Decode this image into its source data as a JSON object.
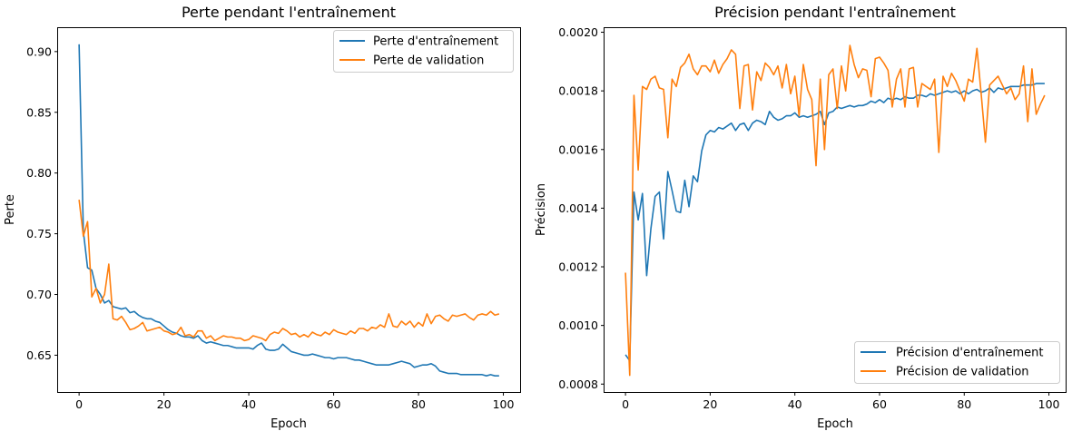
{
  "chart_data": [
    {
      "type": "line",
      "title": "Perte pendant l'entraînement",
      "xlabel": "Epoch",
      "ylabel": "Perte",
      "xlim": [
        -4.95,
        103.95
      ],
      "ylim": [
        0.6197,
        0.9193
      ],
      "xticks": [
        0,
        20,
        40,
        60,
        80,
        100
      ],
      "yticks": [
        0.65,
        0.7,
        0.75,
        0.8,
        0.85,
        0.9
      ],
      "ytick_labels": [
        "0.65",
        "0.70",
        "0.75",
        "0.80",
        "0.85",
        "0.90"
      ],
      "legend_position": "top-right",
      "grid": false,
      "series": [
        {
          "name": "Perte d'entraînement",
          "color": "#1f77b4",
          "values": [
            0.906,
            0.752,
            0.722,
            0.72,
            0.705,
            0.7,
            0.693,
            0.695,
            0.69,
            0.689,
            0.688,
            0.689,
            0.685,
            0.686,
            0.683,
            0.681,
            0.68,
            0.68,
            0.678,
            0.677,
            0.674,
            0.671,
            0.669,
            0.668,
            0.666,
            0.665,
            0.665,
            0.664,
            0.666,
            0.662,
            0.66,
            0.661,
            0.66,
            0.659,
            0.658,
            0.658,
            0.657,
            0.656,
            0.656,
            0.656,
            0.656,
            0.655,
            0.658,
            0.66,
            0.655,
            0.654,
            0.654,
            0.655,
            0.659,
            0.656,
            0.653,
            0.652,
            0.651,
            0.65,
            0.65,
            0.651,
            0.65,
            0.649,
            0.648,
            0.648,
            0.647,
            0.648,
            0.648,
            0.648,
            0.647,
            0.646,
            0.646,
            0.645,
            0.644,
            0.643,
            0.642,
            0.642,
            0.642,
            0.642,
            0.643,
            0.644,
            0.645,
            0.644,
            0.643,
            0.64,
            0.641,
            0.642,
            0.642,
            0.643,
            0.641,
            0.637,
            0.636,
            0.635,
            0.635,
            0.635,
            0.634,
            0.634,
            0.634,
            0.634,
            0.634,
            0.634,
            0.633,
            0.634,
            0.633,
            0.633
          ]
        },
        {
          "name": "Perte de validation",
          "color": "#ff7f0e",
          "values": [
            0.778,
            0.748,
            0.76,
            0.698,
            0.705,
            0.693,
            0.7,
            0.725,
            0.68,
            0.679,
            0.682,
            0.677,
            0.671,
            0.672,
            0.674,
            0.677,
            0.67,
            0.671,
            0.672,
            0.673,
            0.67,
            0.669,
            0.667,
            0.668,
            0.673,
            0.666,
            0.667,
            0.665,
            0.67,
            0.67,
            0.664,
            0.666,
            0.662,
            0.664,
            0.666,
            0.665,
            0.665,
            0.664,
            0.664,
            0.662,
            0.663,
            0.666,
            0.665,
            0.664,
            0.662,
            0.667,
            0.669,
            0.668,
            0.672,
            0.67,
            0.667,
            0.668,
            0.665,
            0.667,
            0.665,
            0.669,
            0.667,
            0.666,
            0.669,
            0.667,
            0.671,
            0.669,
            0.668,
            0.667,
            0.67,
            0.668,
            0.672,
            0.672,
            0.67,
            0.673,
            0.672,
            0.675,
            0.673,
            0.684,
            0.674,
            0.673,
            0.678,
            0.675,
            0.678,
            0.673,
            0.677,
            0.674,
            0.684,
            0.676,
            0.682,
            0.683,
            0.68,
            0.678,
            0.683,
            0.682,
            0.683,
            0.684,
            0.681,
            0.679,
            0.683,
            0.684,
            0.683,
            0.686,
            0.683,
            0.684
          ]
        }
      ]
    },
    {
      "type": "line",
      "title": "Précision pendant l'entraînement",
      "xlabel": "Epoch",
      "ylabel": "Précision",
      "xlim": [
        -4.95,
        103.95
      ],
      "ylim": [
        0.000773,
        0.002014
      ],
      "xticks": [
        0,
        20,
        40,
        60,
        80,
        100
      ],
      "yticks": [
        0.0008,
        0.001,
        0.0012,
        0.0014,
        0.0016,
        0.0018,
        0.002
      ],
      "ytick_labels": [
        "0.0008",
        "0.0010",
        "0.0012",
        "0.0014",
        "0.0016",
        "0.0018",
        "0.0020"
      ],
      "legend_position": "bottom-right",
      "grid": false,
      "series": [
        {
          "name": "Précision d'entraînement",
          "color": "#1f77b4",
          "values": [
            0.0009,
            0.00088,
            0.001455,
            0.00136,
            0.00145,
            0.00117,
            0.00133,
            0.00144,
            0.001455,
            0.001295,
            0.001525,
            0.00146,
            0.00139,
            0.001385,
            0.001495,
            0.001405,
            0.00151,
            0.00149,
            0.001595,
            0.00165,
            0.001665,
            0.00166,
            0.001675,
            0.00167,
            0.00168,
            0.00169,
            0.001665,
            0.001685,
            0.00169,
            0.001665,
            0.00169,
            0.0017,
            0.001695,
            0.001685,
            0.00173,
            0.00171,
            0.0017,
            0.001705,
            0.001715,
            0.001715,
            0.001725,
            0.00171,
            0.001715,
            0.00171,
            0.001715,
            0.00172,
            0.00173,
            0.001685,
            0.001725,
            0.00173,
            0.001745,
            0.00174,
            0.001745,
            0.00175,
            0.001745,
            0.00175,
            0.00175,
            0.001755,
            0.001765,
            0.00176,
            0.00177,
            0.00176,
            0.001775,
            0.00177,
            0.001775,
            0.00177,
            0.00178,
            0.001775,
            0.001775,
            0.001785,
            0.001785,
            0.00178,
            0.00179,
            0.001785,
            0.00179,
            0.001795,
            0.0018,
            0.001795,
            0.0018,
            0.00179,
            0.0018,
            0.00179,
            0.0018,
            0.001805,
            0.001795,
            0.0018,
            0.00181,
            0.001795,
            0.00181,
            0.001805,
            0.00181,
            0.001815,
            0.001815,
            0.001815,
            0.00182,
            0.00182,
            0.00182,
            0.001825,
            0.001825,
            0.001825
          ]
        },
        {
          "name": "Précision de validation",
          "color": "#ff7f0e",
          "values": [
            0.00118,
            0.00083,
            0.001785,
            0.00153,
            0.001815,
            0.001805,
            0.00184,
            0.00185,
            0.00181,
            0.001805,
            0.00164,
            0.00184,
            0.001815,
            0.00188,
            0.001895,
            0.001925,
            0.001875,
            0.001855,
            0.001885,
            0.001885,
            0.001865,
            0.001905,
            0.00186,
            0.00189,
            0.00191,
            0.00194,
            0.001925,
            0.00174,
            0.001885,
            0.00189,
            0.001735,
            0.001865,
            0.001835,
            0.001895,
            0.00188,
            0.001855,
            0.001885,
            0.00181,
            0.00189,
            0.00179,
            0.00185,
            0.001715,
            0.00189,
            0.001805,
            0.00177,
            0.001545,
            0.00184,
            0.0016,
            0.001855,
            0.001875,
            0.00174,
            0.001885,
            0.0018,
            0.001955,
            0.00189,
            0.001845,
            0.001875,
            0.00187,
            0.00178,
            0.00191,
            0.001915,
            0.001895,
            0.00187,
            0.001745,
            0.00184,
            0.001875,
            0.001745,
            0.001875,
            0.00188,
            0.001745,
            0.001825,
            0.001815,
            0.001805,
            0.00184,
            0.00159,
            0.00185,
            0.001815,
            0.00186,
            0.001835,
            0.0018,
            0.001765,
            0.00184,
            0.00183,
            0.001945,
            0.00179,
            0.001625,
            0.00182,
            0.001835,
            0.00185,
            0.00182,
            0.00179,
            0.00181,
            0.00177,
            0.00179,
            0.001885,
            0.001695,
            0.001875,
            0.00172,
            0.001755,
            0.001785
          ]
        }
      ]
    }
  ]
}
